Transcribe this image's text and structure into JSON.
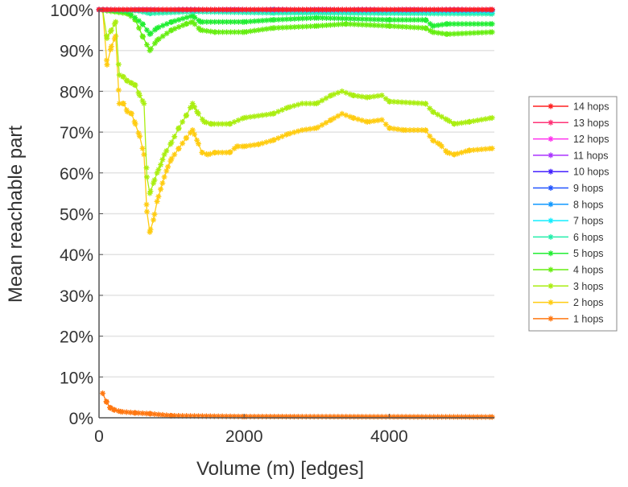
{
  "chart_data": {
    "type": "line",
    "title": "",
    "xlabel": "Volume (m) [edges]",
    "ylabel": "Mean reachable part",
    "xlim": [
      0,
      5450
    ],
    "ylim": [
      0,
      100
    ],
    "x_ticks": [
      0,
      2000,
      4000
    ],
    "x_tick_labels": [
      "0",
      "2000",
      "4000"
    ],
    "y_ticks": [
      0,
      10,
      20,
      30,
      40,
      50,
      60,
      70,
      80,
      90,
      100
    ],
    "y_tick_labels": [
      "0%",
      "10%",
      "20%",
      "30%",
      "40%",
      "50%",
      "60%",
      "70%",
      "80%",
      "90%",
      "100%"
    ],
    "grid": true,
    "legend_position": "right",
    "series": [
      {
        "name": "14 hops",
        "color": "#ff2020",
        "points": [
          [
            0,
            100
          ],
          [
            5420,
            100
          ]
        ]
      },
      {
        "name": "13 hops",
        "color": "#ff3377",
        "points": [
          [
            0,
            100
          ],
          [
            5420,
            100
          ]
        ]
      },
      {
        "name": "12 hops",
        "color": "#ff33ee",
        "points": [
          [
            0,
            100
          ],
          [
            5420,
            100
          ]
        ]
      },
      {
        "name": "11 hops",
        "color": "#aa33ff",
        "points": [
          [
            0,
            100
          ],
          [
            5420,
            100
          ]
        ]
      },
      {
        "name": "10 hops",
        "color": "#4422ff",
        "points": [
          [
            0,
            100
          ],
          [
            5420,
            100
          ]
        ]
      },
      {
        "name": "9 hops",
        "color": "#2255ff",
        "points": [
          [
            0,
            100
          ],
          [
            5420,
            100
          ]
        ]
      },
      {
        "name": "8 hops",
        "color": "#1199ff",
        "points": [
          [
            0,
            100
          ],
          [
            2400,
            100
          ],
          [
            5420,
            99.9
          ]
        ]
      },
      {
        "name": "7 hops",
        "color": "#11eeff",
        "points": [
          [
            0,
            100
          ],
          [
            2400,
            99.8
          ],
          [
            5420,
            99.6
          ]
        ]
      },
      {
        "name": "6 hops",
        "color": "#22eeaa",
        "points": [
          [
            0,
            100
          ],
          [
            500,
            99.8
          ],
          [
            700,
            99.1
          ],
          [
            1300,
            99.5
          ],
          [
            2400,
            99.2
          ],
          [
            5420,
            99
          ]
        ]
      },
      {
        "name": "5 hops",
        "color": "#22ee33",
        "points": [
          [
            0,
            100
          ],
          [
            400,
            99.5
          ],
          [
            600,
            96.5
          ],
          [
            700,
            94
          ],
          [
            800,
            95.5
          ],
          [
            1000,
            97
          ],
          [
            1290,
            98.5
          ],
          [
            1400,
            97
          ],
          [
            2000,
            97
          ],
          [
            2400,
            97.5
          ],
          [
            3000,
            98
          ],
          [
            4000,
            97.5
          ],
          [
            4500,
            97.5
          ],
          [
            4600,
            96
          ],
          [
            4800,
            96.5
          ],
          [
            5420,
            96.5
          ]
        ]
      },
      {
        "name": "4 hops",
        "color": "#66ee11",
        "points": [
          [
            0,
            100
          ],
          [
            400,
            99
          ],
          [
            500,
            97.5
          ],
          [
            600,
            93.5
          ],
          [
            700,
            90
          ],
          [
            800,
            92.5
          ],
          [
            1000,
            95
          ],
          [
            1200,
            96.5
          ],
          [
            1290,
            97
          ],
          [
            1400,
            95
          ],
          [
            1600,
            94.5
          ],
          [
            2000,
            94.5
          ],
          [
            2400,
            95.5
          ],
          [
            3000,
            96
          ],
          [
            3400,
            96.5
          ],
          [
            4000,
            96
          ],
          [
            4500,
            95.5
          ],
          [
            4600,
            94.5
          ],
          [
            4800,
            94
          ],
          [
            5420,
            94.5
          ]
        ]
      },
      {
        "name": "3 hops",
        "color": "#aaee11",
        "points": [
          [
            50,
            100
          ],
          [
            110,
            93
          ],
          [
            170,
            95
          ],
          [
            230,
            97
          ],
          [
            280,
            84
          ],
          [
            340,
            83.5
          ],
          [
            390,
            82.5
          ],
          [
            450,
            82
          ],
          [
            500,
            81.5
          ],
          [
            560,
            79
          ],
          [
            620,
            77
          ],
          [
            660,
            59
          ],
          [
            700,
            55
          ],
          [
            750,
            57.5
          ],
          [
            800,
            60
          ],
          [
            850,
            62
          ],
          [
            900,
            64.5
          ],
          [
            1000,
            67.5
          ],
          [
            1100,
            71
          ],
          [
            1200,
            74
          ],
          [
            1290,
            77
          ],
          [
            1350,
            75
          ],
          [
            1450,
            72.5
          ],
          [
            1550,
            72
          ],
          [
            1800,
            72
          ],
          [
            2000,
            73.5
          ],
          [
            2400,
            74.5
          ],
          [
            2600,
            76
          ],
          [
            2800,
            77
          ],
          [
            3000,
            77
          ],
          [
            3200,
            79
          ],
          [
            3350,
            80
          ],
          [
            3500,
            79
          ],
          [
            3700,
            78.5
          ],
          [
            3900,
            79
          ],
          [
            4000,
            77.5
          ],
          [
            4500,
            77
          ],
          [
            4600,
            75
          ],
          [
            4800,
            73
          ],
          [
            4900,
            72
          ],
          [
            5100,
            72.5
          ],
          [
            5420,
            73.5
          ]
        ]
      },
      {
        "name": "2 hops",
        "color": "#ffcc11",
        "points": [
          [
            50,
            100
          ],
          [
            110,
            86.5
          ],
          [
            170,
            91
          ],
          [
            230,
            93.5
          ],
          [
            280,
            77
          ],
          [
            340,
            77
          ],
          [
            390,
            75
          ],
          [
            450,
            74.5
          ],
          [
            500,
            72
          ],
          [
            560,
            69
          ],
          [
            620,
            64.5
          ],
          [
            660,
            50.5
          ],
          [
            700,
            45.5
          ],
          [
            750,
            48.5
          ],
          [
            800,
            53
          ],
          [
            850,
            56
          ],
          [
            900,
            59
          ],
          [
            950,
            61.5
          ],
          [
            1000,
            63.5
          ],
          [
            1100,
            66
          ],
          [
            1200,
            68.5
          ],
          [
            1290,
            70.5
          ],
          [
            1350,
            68
          ],
          [
            1420,
            65
          ],
          [
            1500,
            64.5
          ],
          [
            1600,
            65
          ],
          [
            1800,
            65
          ],
          [
            1900,
            66.5
          ],
          [
            2000,
            66.5
          ],
          [
            2200,
            67
          ],
          [
            2400,
            68
          ],
          [
            2600,
            69.5
          ],
          [
            2800,
            70.5
          ],
          [
            3000,
            71
          ],
          [
            3200,
            73
          ],
          [
            3350,
            74.5
          ],
          [
            3500,
            73.5
          ],
          [
            3700,
            72.5
          ],
          [
            3900,
            73
          ],
          [
            4000,
            71
          ],
          [
            4200,
            70.5
          ],
          [
            4500,
            70.5
          ],
          [
            4600,
            68
          ],
          [
            4700,
            67
          ],
          [
            4800,
            65
          ],
          [
            4900,
            64.5
          ],
          [
            5000,
            65
          ],
          [
            5100,
            65.5
          ],
          [
            5420,
            66
          ]
        ]
      },
      {
        "name": "1 hops",
        "color": "#ff7711",
        "points": [
          [
            50,
            6
          ],
          [
            100,
            4
          ],
          [
            150,
            2.5
          ],
          [
            200,
            2
          ],
          [
            300,
            1.5
          ],
          [
            500,
            1.2
          ],
          [
            700,
            1
          ],
          [
            1000,
            0.5
          ],
          [
            2000,
            0.3
          ],
          [
            5420,
            0.2
          ]
        ]
      }
    ]
  }
}
